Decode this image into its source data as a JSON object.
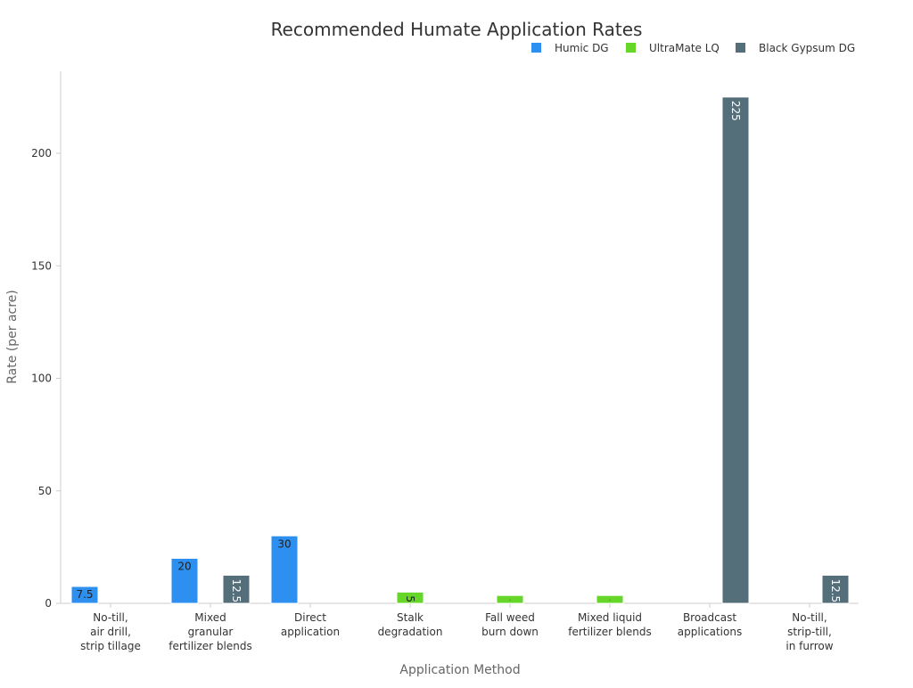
{
  "chart_data": {
    "type": "bar",
    "title": "Recommended Humate Application Rates",
    "xlabel": "Application Method",
    "ylabel": "Rate (per acre)",
    "ylim": [
      0,
      235
    ],
    "yticks": [
      0,
      50,
      100,
      150,
      200
    ],
    "grid": false,
    "legend_position": "top-right",
    "categories": [
      [
        "No-till,",
        "air drill,",
        "strip tillage"
      ],
      [
        "Mixed",
        "granular",
        "fertilizer blends"
      ],
      [
        "Direct",
        "application"
      ],
      [
        "Stalk",
        "degradation"
      ],
      [
        "Fall weed",
        "burn down"
      ],
      [
        "Mixed liquid",
        "fertilizer blends"
      ],
      [
        "Broadcast",
        "applications"
      ],
      [
        "No-till,",
        "strip-till,",
        "in furrow"
      ]
    ],
    "series": [
      {
        "name": "Humic DG",
        "color": "#2d8ff0",
        "values": [
          7.5,
          20,
          30,
          null,
          null,
          null,
          null,
          null
        ]
      },
      {
        "name": "UltraMate LQ",
        "color": "#66d628",
        "values": [
          null,
          null,
          null,
          5,
          3.5,
          3.5,
          null,
          null
        ]
      },
      {
        "name": "Black Gypsum DG",
        "color": "#546e7a",
        "values": [
          null,
          12.5,
          null,
          null,
          null,
          null,
          225,
          12.5
        ]
      }
    ]
  }
}
